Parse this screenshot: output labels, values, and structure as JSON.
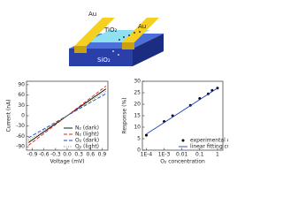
{
  "schematic": {
    "labels": [
      "Au",
      "TiO₂",
      "Au",
      "SiO₂"
    ]
  },
  "chart_data": [
    {
      "type": "line",
      "xlabel": "Voltage (mV)",
      "ylabel": "Current (nA)",
      "x": [
        -1,
        1
      ],
      "xlim": [
        -1.05,
        1.05
      ],
      "ylim": [
        -100,
        100
      ],
      "xticks": [
        -0.9,
        -0.6,
        -0.3,
        {
          "value": 0,
          "label": "0.0"
        },
        0.3,
        0.6,
        0.9
      ],
      "yticks": [
        -90,
        -60,
        -30,
        0,
        30,
        60,
        90
      ],
      "legend": "lower right",
      "series": [
        {
          "name": "N₂ (dark)",
          "color": "#000000",
          "dash": "solid",
          "values": [
            -78,
            78
          ]
        },
        {
          "name": "N₂ (light)",
          "color": "#e02020",
          "dash": "dashed",
          "values": [
            -86,
            86
          ]
        },
        {
          "name": "O₂ (dark)",
          "color": "#2040d0",
          "dash": "dashed",
          "values": [
            -64,
            64
          ]
        },
        {
          "name": "O₂ (light)",
          "color": "#7a9a30",
          "dash": "dotted",
          "values": [
            -71,
            71
          ]
        }
      ]
    },
    {
      "type": "scatter",
      "xlabel": "O₂ concentration",
      "ylabel": "Response (%)",
      "xscale": "log",
      "xlim": [
        6e-05,
        2
      ],
      "ylim": [
        0,
        30
      ],
      "xticks": [
        {
          "value": 0.0001,
          "label": "1E-4"
        },
        {
          "value": 0.001,
          "label": "1E-3"
        },
        0.01,
        0.1,
        1
      ],
      "yticks": [
        0,
        5,
        10,
        15,
        20,
        25,
        30
      ],
      "legend": "lower right",
      "series": [
        {
          "name": "experimental data",
          "type": "scatter",
          "color": "#000000",
          "x": [
            0.0001,
            0.001,
            0.003,
            0.03,
            0.1,
            0.3,
            0.5,
            1
          ],
          "values": [
            6.5,
            12.5,
            15,
            19.5,
            22.5,
            24.5,
            26,
            27
          ]
        },
        {
          "name": "linear fitting curve",
          "type": "line",
          "color": "#2040c0",
          "x": [
            0.0001,
            1
          ],
          "values": [
            7,
            27
          ]
        }
      ]
    }
  ]
}
